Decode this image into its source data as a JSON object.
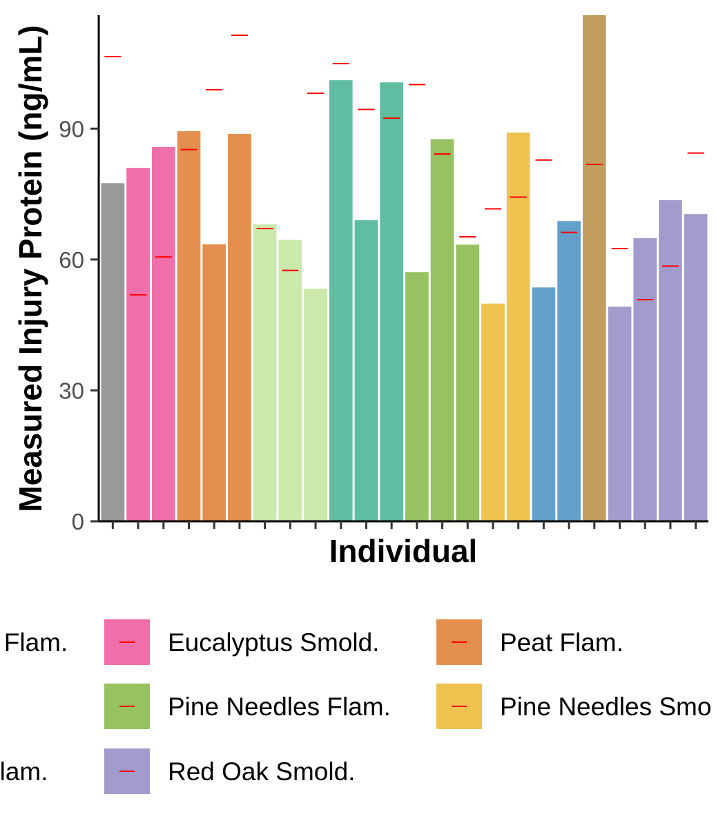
{
  "chart_data": {
    "type": "bar",
    "title": "",
    "xlabel": "Individual",
    "ylabel": "Measured Injury Protein (ng/mL)",
    "ylim": [
      0,
      116
    ],
    "yticks": [
      0,
      30,
      60,
      90
    ],
    "grid": false,
    "legend_position": "bottom",
    "categories": [
      "",
      "",
      "",
      "",
      "",
      "",
      "",
      "",
      "",
      "",
      "",
      "",
      "",
      "",
      "",
      "",
      "",
      "",
      "",
      "",
      "",
      "",
      "",
      ""
    ],
    "values": [
      77.5,
      81,
      85.8,
      89.4,
      63.5,
      88.8,
      68.1,
      64.5,
      53.3,
      101.1,
      69,
      100.6,
      57.1,
      87.6,
      63.4,
      49.9,
      89.1,
      53.6,
      68.8,
      116,
      49.2,
      64.9,
      73.6,
      70.4
    ],
    "reference_marks": [
      106.5,
      51.9,
      60.6,
      85.2,
      98.9,
      111.4,
      67.1,
      57.5,
      98.1,
      104.9,
      94.4,
      92.4,
      100.1,
      84.2,
      65.2,
      71.6,
      74.3,
      82.8,
      66.2,
      81.8,
      62.5,
      50.8,
      58.5,
      84.4
    ],
    "bar_groups": [
      0,
      1,
      1,
      2,
      2,
      2,
      3,
      3,
      3,
      4,
      4,
      4,
      5,
      5,
      5,
      6,
      6,
      7,
      7,
      8,
      9,
      9,
      9,
      9
    ],
    "group_colors": [
      "#999999",
      "#F06EAA",
      "#E48F4E",
      "#CCE9AC",
      "#61BDA1",
      "#97C262",
      "#F0C24F",
      "#63A1CC",
      "#C29E5E",
      "#A19CCC"
    ],
    "reference_color": "#FF0000",
    "legend": [
      {
        "label": "s Flam.",
        "color": "#999999"
      },
      {
        "label": "Eucalyptus Smold.",
        "color": "#F06EAA"
      },
      {
        "label": "Peat Flam.",
        "color": "#E48F4E"
      },
      {
        "label": ".",
        "color": "#CCE9AC"
      },
      {
        "label": "Pine Needles Flam.",
        "color": "#97C262"
      },
      {
        "label": "Pine Needles Smo",
        "color": "#F0C24F"
      },
      {
        "label": "Flam.",
        "color": "#C29E5E"
      },
      {
        "label": "Red Oak Smold.",
        "color": "#A19CCC"
      }
    ]
  }
}
